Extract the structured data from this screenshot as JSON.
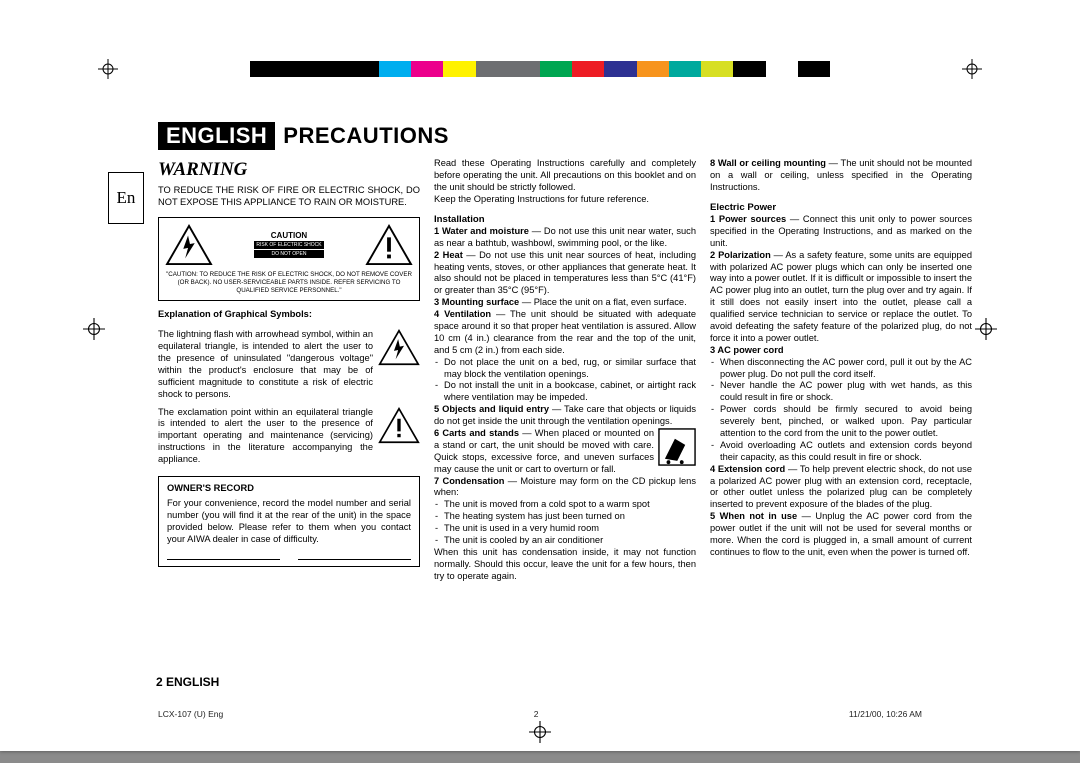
{
  "colorbar": [
    "#000000",
    "#000000",
    "#000000",
    "#000000",
    "#00aeef",
    "#ec008c",
    "#fff200",
    "#6d6e71",
    "#6d6e71",
    "#00a651",
    "#ed1c24",
    "#2e3192",
    "#f7941d",
    "#00a99d",
    "#d7df23",
    "#000000",
    "#ffffff",
    "#000000"
  ],
  "side_tab": "En",
  "header_badge": "ENGLISH",
  "header_title": "PRECAUTIONS",
  "col1": {
    "warning_title": "WARNING",
    "warning_text": "TO REDUCE THE RISK OF FIRE OR ELECTRIC SHOCK, DO NOT EXPOSE THIS APPLIANCE TO RAIN OR MOISTURE.",
    "caution_label": "CAUTION",
    "caution_black1": "RISK OF ELECTRIC SHOCK",
    "caution_black2": "DO NOT OPEN",
    "caution_sub": "\"CAUTION: TO REDUCE THE RISK OF ELECTRIC SHOCK, DO NOT REMOVE COVER (OR BACK). NO USER-SERVICEABLE PARTS INSIDE. REFER SERVICING TO QUALIFIED SERVICE PERSONNEL.\"",
    "symbols_title": "Explanation of Graphical Symbols:",
    "symbol1": "The lightning flash with arrowhead symbol, within an equilateral triangle, is intended to alert the user to the presence of uninsulated \"dangerous voltage\" within the product's enclosure that may be of sufficient magnitude to constitute a risk of electric shock to persons.",
    "symbol2": "The exclamation point within an equilateral triangle is intended to alert the user to the presence of important operating and maintenance (servicing) instructions in the literature accompanying the appliance.",
    "owners_title": "OWNER'S RECORD",
    "owners_text": "For your convenience, record the model number and serial number (you will find it at the rear of the unit) in the space provided below. Please refer to them when you contact your AIWA dealer in case of difficulty."
  },
  "col2": {
    "intro": "Read these Operating Instructions carefully and completely before operating the unit. All precautions on this booklet and on the unit should be strictly followed.",
    "intro2": "Keep the Operating Instructions for future reference.",
    "install_title": "Installation",
    "i1_lead": "1 Water and moisture",
    "i1": " — Do not use this unit near water, such as near a bathtub, washbowl, swimming pool, or the like.",
    "i2_lead": "2 Heat",
    "i2": " — Do not use this unit near sources of heat, including heating vents, stoves, or other appliances that generate heat. It also should not be placed in temperatures less than 5°C (41°F) or greater than 35°C (95°F).",
    "i3_lead": "3 Mounting surface",
    "i3": " — Place the unit on a flat, even surface.",
    "i4_lead": "4 Ventilation",
    "i4": " — The unit should be situated with adequate space around it so that proper heat ventilation is assured. Allow 10 cm (4 in.) clearance from the rear and the top of the unit, and 5 cm (2 in.) from each side.",
    "i4_b1": "Do not place the unit on a bed, rug, or similar surface that may block the ventilation openings.",
    "i4_b2": "Do not install the unit in a bookcase, cabinet, or airtight rack where ventilation may be impeded.",
    "i5_lead": "5 Objects and liquid entry",
    "i5": " — Take care that objects or liquids do not get inside the unit through the ventilation openings.",
    "i6_lead": "6 Carts and stands",
    "i6": " — When placed or mounted on a stand or cart, the unit should be moved with care. Quick stops, excessive force, and uneven surfaces may cause the unit or cart to overturn or fall.",
    "i7_lead": "7 Condensation",
    "i7": " — Moisture may form on the CD pickup lens when:",
    "i7_b1": "The unit is moved from a cold spot to a warm spot",
    "i7_b2": "The heating system has just been turned on",
    "i7_b3": "The unit is used in a very humid room",
    "i7_b4": "The unit is cooled by an air conditioner",
    "i7_tail": "When this unit has condensation inside, it may not function normally. Should this occur, leave the unit for a few hours, then try to operate again."
  },
  "col3": {
    "i8_lead": "8 Wall or ceiling mounting",
    "i8": " — The unit should not be mounted on a wall or ceiling, unless specified in the Operating Instructions.",
    "ep_title": "Electric Power",
    "e1_lead": "1 Power sources",
    "e1": " — Connect this unit only to power sources specified in the Operating Instructions, and as marked on the unit.",
    "e2_lead": "2 Polarization",
    "e2": " — As a safety feature, some units are equipped with polarized AC power plugs which can only be inserted one way into a power outlet. If it is difficult or impossible to insert the AC power plug into an outlet, turn the plug over and try again. If it still does not easily insert into the outlet, please call a qualified service technician to service or replace the outlet. To avoid defeating the safety feature of the polarized plug, do not force it into a power outlet.",
    "e3_lead": "3 AC power cord",
    "e3_b1": "When disconnecting the AC power cord, pull it out by the AC power plug. Do not pull the cord itself.",
    "e3_b2": "Never handle the AC power plug with wet hands, as this could result in fire or shock.",
    "e3_b3": "Power cords should be firmly secured to avoid being severely bent, pinched, or walked upon. Pay particular attention to the cord from the unit to the power outlet.",
    "e3_b4": "Avoid overloading AC outlets and extension cords beyond their capacity, as this could result in fire or shock.",
    "e4_lead": "4 Extension cord",
    "e4": " — To help prevent electric shock, do not use a polarized AC power plug with an extension cord, receptacle, or other outlet unless the polarized plug can be completely inserted to prevent exposure of the blades of the plug.",
    "e5_lead": "5 When not in use",
    "e5": " — Unplug the AC power cord from the power outlet if the unit will not be used for several months or more. When the cord is plugged in, a small amount of current continues to flow to the unit, even when the power is turned off."
  },
  "footer_page": "2 ENGLISH",
  "meta_file": "LCX-107 (U) Eng",
  "meta_page": "2",
  "meta_date": "11/21/00, 10:26 AM"
}
